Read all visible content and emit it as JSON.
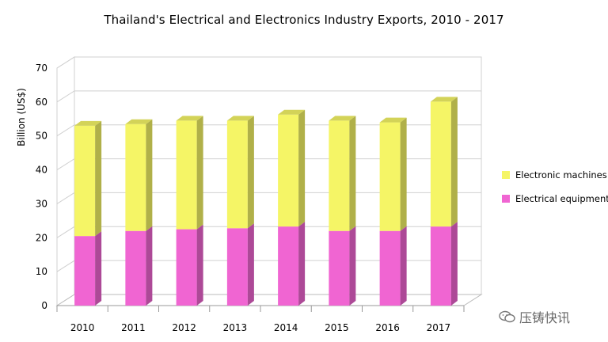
{
  "chart_data": {
    "type": "bar",
    "stacked": true,
    "three_d": true,
    "title": "Thailand's Electrical and Electronics Industry Exports, 2010 - 2017",
    "ylabel": "Billion (US$)",
    "xlabel": "",
    "ylim": [
      0,
      70
    ],
    "yticks": [
      0,
      10,
      20,
      30,
      40,
      50,
      60,
      70
    ],
    "grid": true,
    "legend_position": "right",
    "categories": [
      "2010",
      "2011",
      "2012",
      "2013",
      "2014",
      "2015",
      "2016",
      "2017"
    ],
    "series": [
      {
        "name": "Electrical equipment",
        "color": "#f065d2",
        "values": [
          20.5,
          22,
          22.5,
          22.8,
          23.3,
          22,
          22,
          23.3
        ]
      },
      {
        "name": "Electronic machines",
        "color": "#f5f566",
        "values": [
          32.5,
          31.5,
          32,
          31.7,
          33,
          32.5,
          32,
          36.8
        ]
      }
    ]
  },
  "watermark": {
    "text": "压铸快讯",
    "icon": "wechat-icon"
  }
}
